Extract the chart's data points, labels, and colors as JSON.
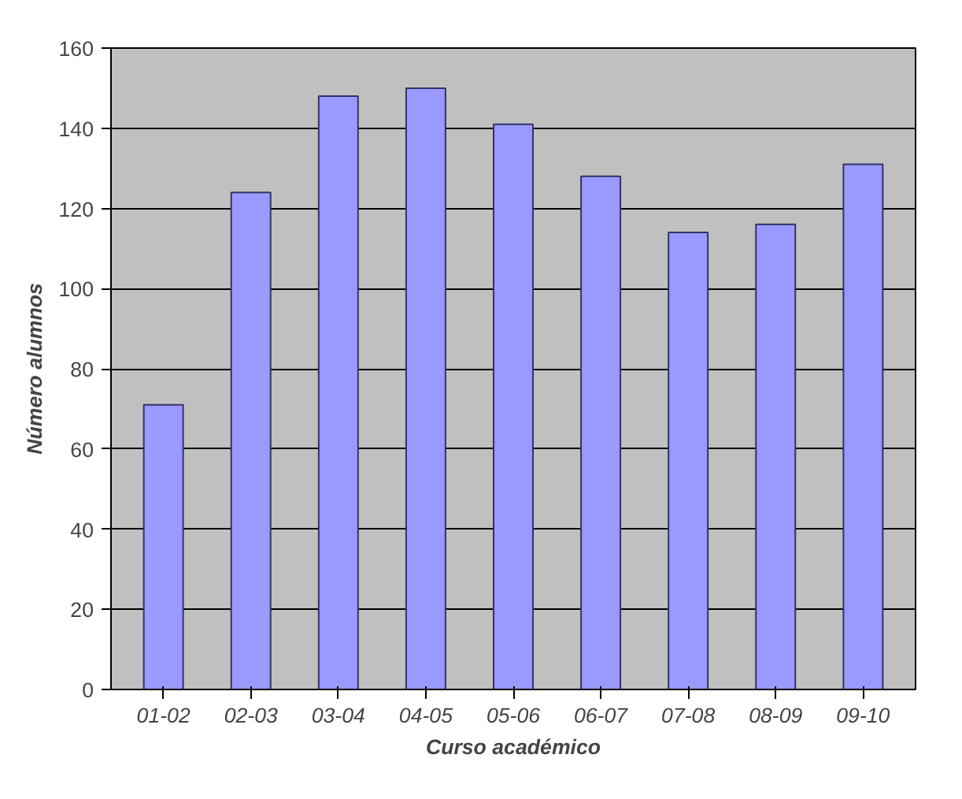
{
  "chart_data": {
    "type": "bar",
    "xlabel": "Curso académico",
    "ylabel": "Número alumnos",
    "categories": [
      "01-02",
      "02-03",
      "03-04",
      "04-05",
      "05-06",
      "06-07",
      "07-08",
      "08-09",
      "09-10"
    ],
    "values": [
      71,
      124,
      148,
      150,
      141,
      128,
      114,
      116,
      131
    ],
    "color": "#9999ff",
    "ylim": [
      0,
      160
    ],
    "yticks": [
      0,
      20,
      40,
      60,
      80,
      100,
      120,
      140,
      160
    ],
    "grid": "y"
  }
}
